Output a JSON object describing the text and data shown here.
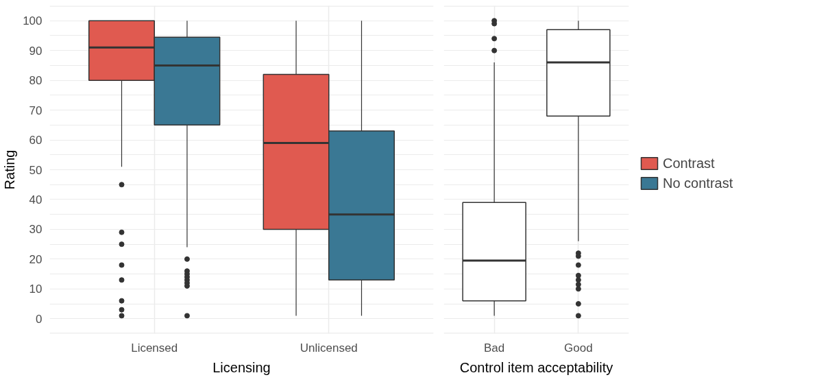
{
  "chart_data": [
    {
      "type": "box",
      "xlabel": "Licensing",
      "ylabel": "Rating",
      "categories": [
        "Licensed",
        "Unlicensed"
      ],
      "ylim": [
        -5,
        105
      ],
      "yticks": [
        {
          "value": -5,
          "label": null
        },
        0,
        {
          "value": 5,
          "label": null
        },
        10,
        {
          "value": 15,
          "label": null
        },
        20,
        {
          "value": 25,
          "label": null
        },
        30,
        {
          "value": 35,
          "label": null
        },
        40,
        {
          "value": 45,
          "label": null
        },
        50,
        {
          "value": 55,
          "label": null
        },
        60,
        {
          "value": 65,
          "label": null
        },
        70,
        {
          "value": 75,
          "label": null
        },
        80,
        {
          "value": 85,
          "label": null
        },
        90,
        {
          "value": 95,
          "label": null
        },
        100,
        {
          "value": 105,
          "label": null
        }
      ],
      "grid": true,
      "legend": "right",
      "tick_labels": "xy",
      "series": [
        {
          "name": "Contrast",
          "color": "#e05a50",
          "boxes": [
            {
              "low": 51,
              "q1": 80,
              "median": 91,
              "q3": 100,
              "high": 100,
              "outliers": [
                45,
                29,
                25,
                18,
                13,
                6,
                3,
                1
              ]
            },
            {
              "low": 1,
              "q1": 30,
              "median": 59,
              "q3": 82,
              "high": 100
            }
          ]
        },
        {
          "name": "No contrast",
          "color": "#3a7894",
          "boxes": [
            {
              "low": 24,
              "q1": 65,
              "median": 85,
              "q3": 94.5,
              "high": 100,
              "outliers": [
                20,
                16,
                15,
                14,
                13,
                12,
                11,
                1
              ]
            },
            {
              "low": 1,
              "q1": 13,
              "median": 35,
              "q3": 63,
              "high": 100
            }
          ]
        }
      ]
    },
    {
      "type": "box",
      "xlabel": "Control item acceptability",
      "categories": [
        "Bad",
        "Good"
      ],
      "ylim": [
        -5,
        105
      ],
      "yticks": [
        {
          "value": -5,
          "label": null
        },
        0,
        {
          "value": 5,
          "label": null
        },
        10,
        {
          "value": 15,
          "label": null
        },
        20,
        {
          "value": 25,
          "label": null
        },
        30,
        {
          "value": 35,
          "label": null
        },
        40,
        {
          "value": 45,
          "label": null
        },
        50,
        {
          "value": 55,
          "label": null
        },
        60,
        {
          "value": 65,
          "label": null
        },
        70,
        {
          "value": 75,
          "label": null
        },
        80,
        {
          "value": 85,
          "label": null
        },
        90,
        {
          "value": 95,
          "label": null
        },
        100,
        {
          "value": 105,
          "label": null
        }
      ],
      "grid": true,
      "tick_labels": "x",
      "series": [
        {
          "color": "#ffffff",
          "boxes": [
            {
              "low": 1,
              "q1": 6,
              "median": 19.5,
              "q3": 39,
              "high": 86,
              "outliers": [
                100,
                99,
                94,
                90
              ]
            },
            {
              "low": 26,
              "q1": 68,
              "median": 86,
              "q3": 97,
              "high": 100,
              "outliers": [
                22,
                21,
                18,
                14.5,
                13,
                11.5,
                10,
                5,
                1
              ]
            }
          ]
        }
      ]
    }
  ]
}
